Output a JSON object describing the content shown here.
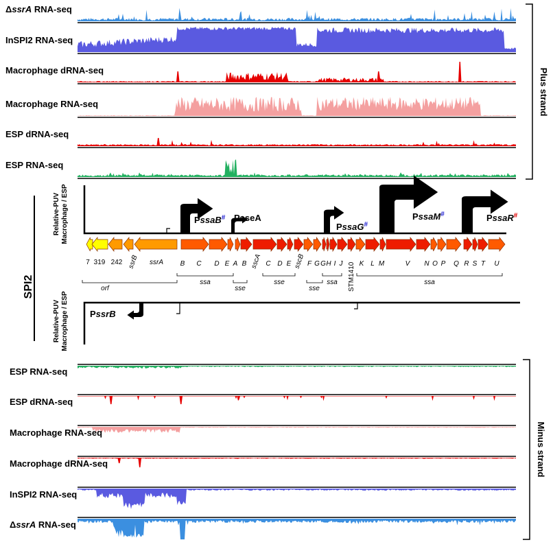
{
  "plus_strand_label": "Plus strand",
  "minus_strand_label": "Minus strand",
  "spi2_label": "SPI2",
  "relative_puv_label": "Relative-PUV",
  "relative_puv_sub": "Macrophage / ESP",
  "plus_tracks": [
    {
      "prefix": "Δ",
      "italic": "ssrA",
      "suffix": " RNA-seq",
      "color": "#3b8fe0"
    },
    {
      "prefix": "",
      "italic": "",
      "suffix": "InSPI2 RNA-seq",
      "color": "#5a5ae0"
    },
    {
      "prefix": "",
      "italic": "",
      "suffix": "Macrophage dRNA-seq",
      "color": "#e60000"
    },
    {
      "prefix": "",
      "italic": "",
      "suffix": "Macrophage RNA-seq",
      "color": "#f4a0a0"
    },
    {
      "prefix": "",
      "italic": "",
      "suffix": "ESP dRNA-seq",
      "color": "#e60000"
    },
    {
      "prefix": "",
      "italic": "",
      "suffix": "ESP RNA-seq",
      "color": "#22b060"
    }
  ],
  "minus_tracks": [
    {
      "prefix": "",
      "italic": "",
      "suffix": "ESP RNA-seq",
      "color": "#22b060"
    },
    {
      "prefix": "",
      "italic": "",
      "suffix": "ESP dRNA-seq",
      "color": "#e60000"
    },
    {
      "prefix": "",
      "italic": "",
      "suffix": "Macrophage RNA-seq",
      "color": "#f4a0a0"
    },
    {
      "prefix": "",
      "italic": "",
      "suffix": "Macrophage dRNA-seq",
      "color": "#e60000"
    },
    {
      "prefix": "",
      "italic": "",
      "suffix": "InSPI2 RNA-seq",
      "color": "#5a5ae0"
    },
    {
      "prefix": "Δ",
      "italic": "ssrA",
      "suffix": " RNA-seq",
      "color": "#3b8fe0"
    }
  ],
  "promoters": [
    {
      "p": "P",
      "name": "ssaB",
      "mark": "#",
      "mark_color": "#2020d0",
      "italic": true
    },
    {
      "p": "P",
      "name": "sseA",
      "mark": "",
      "mark_color": "",
      "italic": false
    },
    {
      "p": "P",
      "name": "ssaG",
      "mark": "#",
      "mark_color": "#2020d0",
      "italic": true
    },
    {
      "p": "P",
      "name": "ssaM",
      "mark": "#",
      "mark_color": "#2020d0",
      "italic": true
    },
    {
      "p": "P",
      "name": "ssaR",
      "mark": "#",
      "mark_color": "#e00000",
      "italic": true
    },
    {
      "p": "P",
      "name": "ssrB",
      "mark": "",
      "mark_color": "",
      "italic": true
    }
  ],
  "gene_labels": [
    "7",
    "319",
    "242",
    "ssrB",
    "ssrA",
    "B",
    "C",
    "D",
    "E",
    "A",
    "B",
    "sscA",
    "C",
    "D",
    "E",
    "sscB",
    "F",
    "G",
    "G",
    "H",
    "I",
    "J",
    "STM1410",
    "K",
    "L",
    "M",
    "V",
    "N",
    "O",
    "P",
    "Q",
    "R",
    "S",
    "T",
    "U"
  ],
  "operon_labels": [
    "orf",
    "ssa",
    "sse",
    "sse",
    "sse",
    "ssa",
    "ssa"
  ],
  "colors": {
    "yellow": "#ffff00",
    "orange": "#ff9a00",
    "orange_red": "#ff5a00",
    "red": "#ee1c00"
  }
}
